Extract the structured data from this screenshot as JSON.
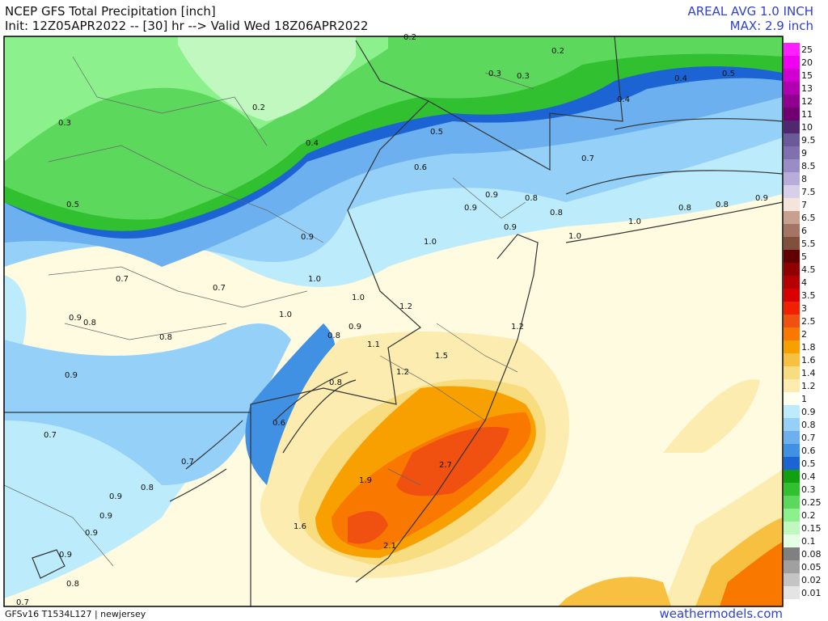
{
  "header": {
    "title": "NCEP GFS Total Precipitation [inch]",
    "subtitle": "Init: 12Z05APR2022 -- [30] hr --> Valid Wed 18Z06APR2022",
    "areal_avg": "AREAL AVG 1.0 INCH",
    "max": "MAX: 2.9 inch"
  },
  "colorbar": [
    {
      "value": 25,
      "color": "#ff20ff"
    },
    {
      "value": 20,
      "color": "#f000f0"
    },
    {
      "value": 15,
      "color": "#d000d0"
    },
    {
      "value": 13,
      "color": "#b000b0"
    },
    {
      "value": 12,
      "color": "#900090"
    },
    {
      "value": 11,
      "color": "#700070"
    },
    {
      "value": 10,
      "color": "#502870"
    },
    {
      "value": 9.5,
      "color": "#6a5a9a"
    },
    {
      "value": 9,
      "color": "#8070b0"
    },
    {
      "value": 8.5,
      "color": "#9a8cc4"
    },
    {
      "value": 8,
      "color": "#b8acd8"
    },
    {
      "value": 7.5,
      "color": "#d8d0e8"
    },
    {
      "value": 7,
      "color": "#f4e4dc"
    },
    {
      "value": 6.5,
      "color": "#c8a090"
    },
    {
      "value": 6,
      "color": "#a47464"
    },
    {
      "value": 5.5,
      "color": "#80503c"
    },
    {
      "value": 5,
      "color": "#600000"
    },
    {
      "value": 4.5,
      "color": "#900000"
    },
    {
      "value": 4,
      "color": "#b40000"
    },
    {
      "value": 3.5,
      "color": "#d80000"
    },
    {
      "value": 3,
      "color": "#f02000"
    },
    {
      "value": 2.5,
      "color": "#f05010"
    },
    {
      "value": 2,
      "color": "#f87800"
    },
    {
      "value": 1.8,
      "color": "#f8a000"
    },
    {
      "value": 1.6,
      "color": "#f8c040"
    },
    {
      "value": 1.4,
      "color": "#f8dc80"
    },
    {
      "value": 1.2,
      "color": "#fcecb0"
    },
    {
      "value": 1,
      "color": "#fffff0"
    },
    {
      "value": 0.9,
      "color": "#bcecfc"
    },
    {
      "value": 0.8,
      "color": "#94d0f8"
    },
    {
      "value": 0.7,
      "color": "#6cb0f0"
    },
    {
      "value": 0.6,
      "color": "#4090e4"
    },
    {
      "value": 0.5,
      "color": "#1c64d4"
    },
    {
      "value": 0.4,
      "color": "#10a010"
    },
    {
      "value": 0.3,
      "color": "#30c030"
    },
    {
      "value": 0.25,
      "color": "#5cd85c"
    },
    {
      "value": 0.2,
      "color": "#8cf08c"
    },
    {
      "value": 0.15,
      "color": "#c0f8c0"
    },
    {
      "value": 0.1,
      "color": "#e4ffe4"
    },
    {
      "value": 0.08,
      "color": "#808080"
    },
    {
      "value": 0.05,
      "color": "#a0a0a0"
    },
    {
      "value": 0.02,
      "color": "#c4c4c4"
    },
    {
      "value": 0.01,
      "color": "#e4e4e4"
    }
  ],
  "map_labels": [
    "0.2",
    "0.2",
    "0.3",
    "0.3",
    "0.4",
    "0.5",
    "0.4",
    "0.2",
    "0.3",
    "0.4",
    "0.5",
    "0.6",
    "0.7",
    "0.9",
    "0.8",
    "0.9",
    "0.8",
    "0.8",
    "0.8",
    "0.9",
    "1.0",
    "0.5",
    "0.9",
    "1.0",
    "0.9",
    "1.0",
    "0.7",
    "0.7",
    "1.0",
    "1.0",
    "1.2",
    "1.0",
    "0.9",
    "0.8",
    "0.8",
    "0.8",
    "0.9",
    "1.2",
    "1.1",
    "1.5",
    "1.2",
    "0.9",
    "0.8",
    "0.7",
    "0.6",
    "0.7",
    "0.8",
    "0.9",
    "0.9",
    "0.9",
    "2.7",
    "1.9",
    "1.6",
    "2.1",
    "0.9",
    "0.8",
    "0.7"
  ],
  "footer": {
    "model": "GFSv16 T1534L127 | newjersey",
    "site": "weathermodels.com"
  }
}
